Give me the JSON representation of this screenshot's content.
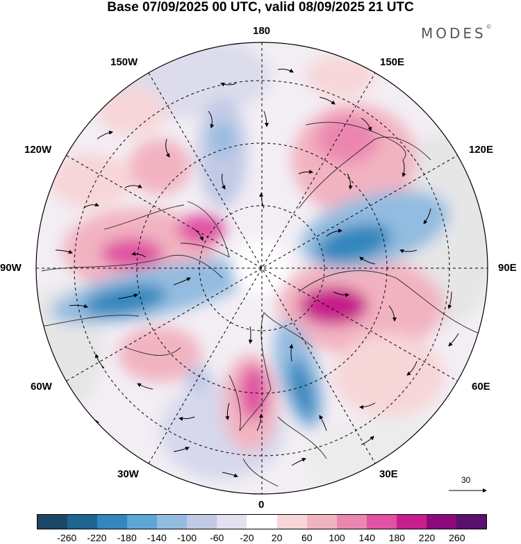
{
  "title": "Base 07/09/2025 00 UTC, valid 08/09/2025 21 UTC",
  "brand": {
    "name": "MODES",
    "mark": "©"
  },
  "longitude_labels": {
    "top": "180",
    "top_right": "150E",
    "right_upper": "120E",
    "right": "90E",
    "right_lower": "60E",
    "bottom_right": "30E",
    "bottom": "0",
    "bottom_left": "30W",
    "left_lower": "60W",
    "left": "90W",
    "left_upper": "120W",
    "top_left": "150W"
  },
  "reference_vector": {
    "value": "30"
  },
  "colorbar": {
    "colors": [
      "#1d4766",
      "#1e6590",
      "#3387bd",
      "#5ea6d6",
      "#93bce0",
      "#c1c9e5",
      "#e3e0ef",
      "#ffffff",
      "#f7d6d8",
      "#f2b3c1",
      "#ec86b0",
      "#e052a3",
      "#c81e8b",
      "#8d0a7c",
      "#5b0f6e"
    ],
    "labels": [
      "-260",
      "-220",
      "-180",
      "-140",
      "-100",
      "-60",
      "-20",
      "20",
      "60",
      "100",
      "140",
      "180",
      "220",
      "260"
    ]
  }
}
